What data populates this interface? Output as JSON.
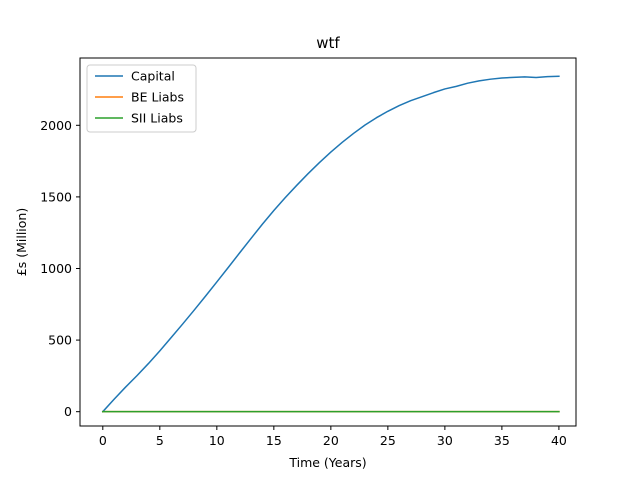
{
  "chart_data": {
    "type": "line",
    "title": "wtf",
    "xlabel": "Time (Years)",
    "ylabel": "£s (Million)",
    "xlim": [
      -2,
      41.5
    ],
    "ylim": [
      -100,
      2470
    ],
    "xticks": [
      0,
      5,
      10,
      15,
      20,
      25,
      30,
      35,
      40
    ],
    "yticks": [
      0,
      500,
      1000,
      1500,
      2000
    ],
    "grid": false,
    "legend_position": "top-left",
    "series": [
      {
        "name": "Capital",
        "color": "#1f77b4",
        "x": [
          0,
          1,
          2,
          3,
          4,
          5,
          6,
          7,
          8,
          9,
          10,
          11,
          12,
          13,
          14,
          15,
          16,
          17,
          18,
          19,
          20,
          21,
          22,
          23,
          24,
          25,
          26,
          27,
          28,
          29,
          30,
          31,
          32,
          33,
          34,
          35,
          36,
          37,
          38,
          39,
          40
        ],
        "y": [
          0,
          88,
          172,
          252,
          336,
          425,
          518,
          612,
          708,
          806,
          906,
          1007,
          1109,
          1210,
          1310,
          1405,
          1495,
          1580,
          1662,
          1740,
          1813,
          1881,
          1944,
          2002,
          2053,
          2098,
          2138,
          2172,
          2200,
          2228,
          2254,
          2272,
          2294,
          2310,
          2322,
          2330,
          2335,
          2338,
          2334,
          2340,
          2342
        ]
      },
      {
        "name": "BE Liabs",
        "color": "#ff7f0e",
        "x": [
          0,
          40
        ],
        "y": [
          0,
          0
        ]
      },
      {
        "name": "SII Liabs",
        "color": "#2ca02c",
        "x": [
          0,
          40
        ],
        "y": [
          0,
          0
        ]
      }
    ]
  }
}
